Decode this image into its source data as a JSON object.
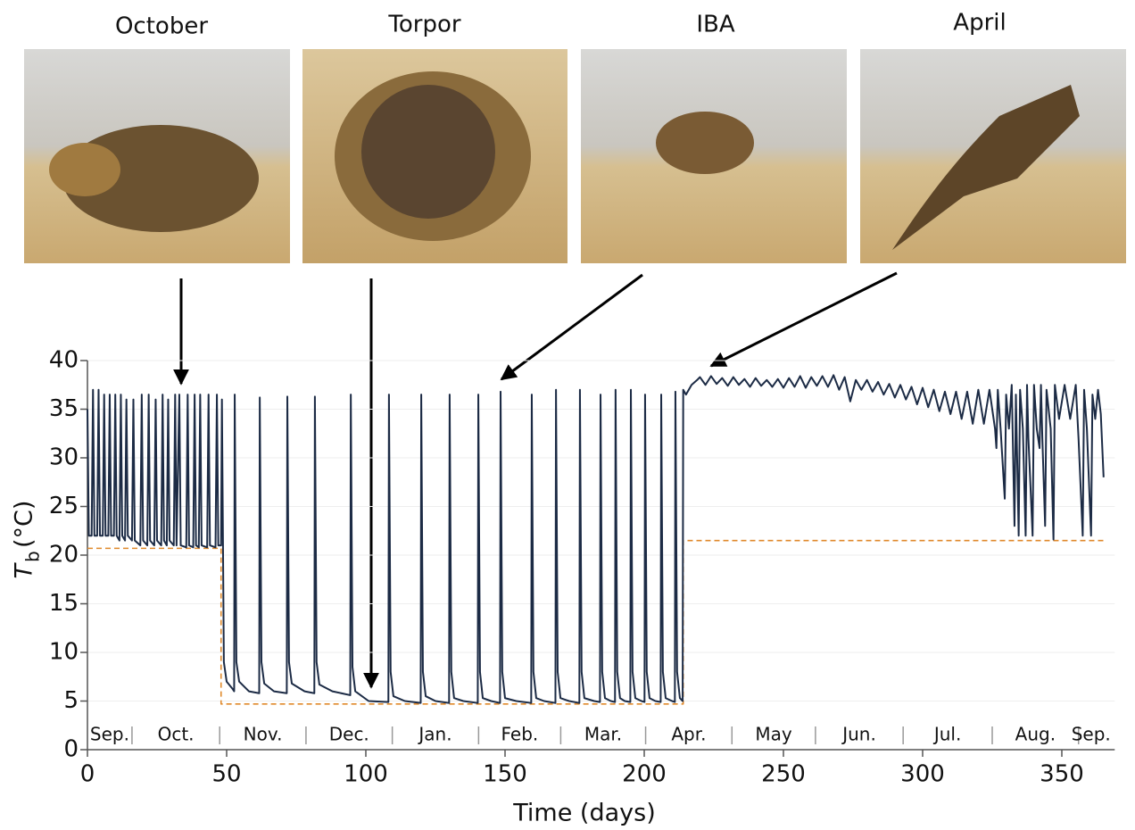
{
  "chart_data": {
    "type": "line",
    "panel_labels": [
      "October",
      "Torpor",
      "IBA",
      "April"
    ],
    "xlabel": "Time (days)",
    "ylabel": {
      "symbol": "T",
      "subscript": "b",
      "unit": "(°C)"
    },
    "xlim": [
      0,
      369
    ],
    "ylim": [
      0,
      40
    ],
    "xticks": [
      0,
      50,
      100,
      150,
      200,
      250,
      300,
      350
    ],
    "yticks": [
      0,
      5,
      10,
      15,
      20,
      25,
      30,
      35,
      40
    ],
    "grid": true,
    "months": [
      "Sep.",
      "Oct.",
      "Nov.",
      "Dec.",
      "Jan.",
      "Feb.",
      "Mar.",
      "Apr.",
      "May",
      "Jun.",
      "Jul.",
      "Aug.",
      "Sep."
    ],
    "month_edges": [
      16,
      47.5,
      78.5,
      109.5,
      140.5,
      170,
      200.5,
      231.5,
      261.5,
      293,
      325,
      356
    ],
    "series": [
      {
        "color": "#1c2b45",
        "style": "solid",
        "x": [
          0,
          0.5,
          1.5,
          2,
          2.5,
          3.5,
          4,
          4.5,
          5.5,
          6,
          6.5,
          7.5,
          8,
          8.5,
          9.5,
          10,
          10.5,
          11.5,
          12,
          12.5,
          13.5,
          14,
          14.5,
          16,
          16.5,
          17,
          19,
          19.5,
          20,
          21.5,
          22,
          22.5,
          24,
          24.5,
          25,
          26.5,
          27,
          27.5,
          28.5,
          29,
          29.5,
          31,
          31.5,
          32,
          33,
          33.5,
          35.5,
          36,
          36.5,
          38,
          38.5,
          39,
          40,
          40.5,
          41,
          43,
          43.5,
          44,
          46,
          46.5,
          47,
          48,
          48.3,
          49,
          50,
          52,
          52.7,
          52.9,
          53.5,
          54.5,
          58,
          61.7,
          61.9,
          62.5,
          63.5,
          67,
          71.6,
          71.8,
          72.4,
          73.4,
          78,
          81.5,
          81.7,
          82.3,
          83.3,
          88,
          94.4,
          94.6,
          95.2,
          96.2,
          101,
          108.1,
          108.3,
          108.9,
          109.9,
          114,
          119.7,
          119.9,
          120.5,
          121.5,
          125,
          129.9,
          130.1,
          130.7,
          131.7,
          135,
          140.2,
          140.4,
          141,
          142,
          145,
          148.2,
          148.4,
          149,
          150,
          154,
          159.4,
          159.6,
          160.2,
          161.2,
          164,
          168.1,
          168.3,
          168.9,
          169.9,
          173,
          176.7,
          176.9,
          177.5,
          178.5,
          182,
          184.1,
          184.3,
          184.9,
          185.9,
          188,
          189.5,
          189.7,
          190.3,
          191.3,
          193,
          195,
          195.2,
          195.8,
          196.8,
          199,
          200.1,
          200.3,
          200.9,
          201.9,
          204,
          205.9,
          206.1,
          206.7,
          207.7,
          210,
          211,
          211.2,
          211.8,
          212.8,
          213.8,
          214,
          215,
          217,
          219,
          220,
          222,
          224,
          226,
          228,
          230,
          232,
          234,
          236,
          238,
          240,
          242,
          244,
          246,
          248,
          250,
          252,
          254,
          256,
          258,
          260,
          262,
          264,
          266,
          268,
          270,
          272,
          274,
          276,
          278,
          280,
          282,
          284,
          286,
          288,
          290,
          292,
          294,
          296,
          298,
          300,
          302,
          304,
          306,
          308,
          310,
          312,
          314,
          316,
          318,
          320,
          322,
          324,
          326,
          326.5,
          327,
          328,
          329.5,
          330,
          331,
          332,
          333,
          333.5,
          334.5,
          335,
          336,
          337,
          337.5,
          338,
          339.5,
          340,
          341,
          342,
          342.5,
          343,
          344,
          344.5,
          346,
          347,
          347.5,
          349,
          351,
          353,
          355,
          356,
          357.5,
          358,
          359,
          360.5,
          361,
          362,
          363,
          364,
          365
        ],
        "values": [
          35,
          22,
          22,
          37,
          22,
          22,
          37,
          22,
          22,
          36.5,
          22,
          22,
          36.5,
          22,
          22,
          36.5,
          22,
          21.5,
          36.5,
          22,
          21.5,
          36,
          22,
          21.5,
          36,
          21.5,
          21,
          36.5,
          21.5,
          21,
          36.5,
          21.5,
          21,
          36,
          21.5,
          21,
          36.5,
          21.5,
          21,
          36,
          21.5,
          21,
          36.5,
          21,
          36.5,
          21,
          20.8,
          36.5,
          21,
          20.8,
          36.5,
          21,
          20.8,
          36.5,
          21,
          20.8,
          36.5,
          21,
          20.8,
          36.5,
          21,
          21,
          36,
          9,
          7,
          6.3,
          6,
          36.5,
          9,
          7,
          6,
          5.8,
          36.2,
          9,
          6.8,
          6,
          5.8,
          36.3,
          9,
          6.8,
          6,
          5.8,
          36.3,
          9,
          6.7,
          6,
          5.6,
          36.5,
          8.5,
          6,
          5,
          4.9,
          36.5,
          8,
          5.5,
          5,
          4.8,
          36.5,
          8,
          5.5,
          5,
          4.8,
          36.5,
          8,
          5.3,
          5,
          4.8,
          36.5,
          8,
          5.3,
          5,
          4.8,
          36.8,
          8,
          5.3,
          5,
          4.8,
          36.5,
          8,
          5.3,
          5,
          4.8,
          37,
          8,
          5.3,
          5,
          4.8,
          37,
          8,
          5.3,
          5,
          4.9,
          36.5,
          8,
          5.3,
          5,
          4.9,
          37,
          8,
          5.3,
          5,
          4.9,
          37,
          8,
          5.3,
          5,
          4.9,
          36.5,
          8,
          5.3,
          5,
          4.9,
          36.5,
          8,
          5.3,
          5,
          4.9,
          36.8,
          8,
          5.3,
          5,
          37,
          36.5,
          37.5,
          38,
          38.3,
          37.5,
          38.4,
          37.6,
          38.2,
          37.4,
          38.3,
          37.5,
          38.1,
          37.3,
          38.2,
          37.4,
          38,
          37.3,
          38.1,
          37.2,
          38.2,
          37.3,
          38.4,
          37.2,
          38.3,
          37.4,
          38.4,
          37.3,
          38.5,
          37,
          38.3,
          35.8,
          38,
          37,
          38,
          36.8,
          37.8,
          36.5,
          37.6,
          36.2,
          37.5,
          36,
          37.3,
          35.5,
          37.2,
          35.2,
          37,
          34.8,
          36.8,
          34.5,
          36.8,
          34,
          36.8,
          33.5,
          37,
          33.5,
          37,
          33,
          31,
          37,
          33,
          25.8,
          36.5,
          33,
          37.5,
          23,
          36.5,
          22,
          37,
          33,
          22,
          37.5,
          32,
          22,
          37.5,
          33,
          31,
          37.5,
          32,
          23,
          37,
          33,
          21.6,
          37.5,
          34,
          37.5,
          34,
          37.5,
          32,
          22,
          37,
          33,
          22,
          36.5,
          34,
          37,
          34.5,
          28
        ]
      },
      {
        "color": "#e08a2c",
        "style": "dashed",
        "x": [
          0,
          48,
          48,
          214,
          214,
          365
        ],
        "values": [
          20.7,
          20.7,
          4.7,
          4.7,
          21.5,
          21.5
        ]
      }
    ]
  }
}
